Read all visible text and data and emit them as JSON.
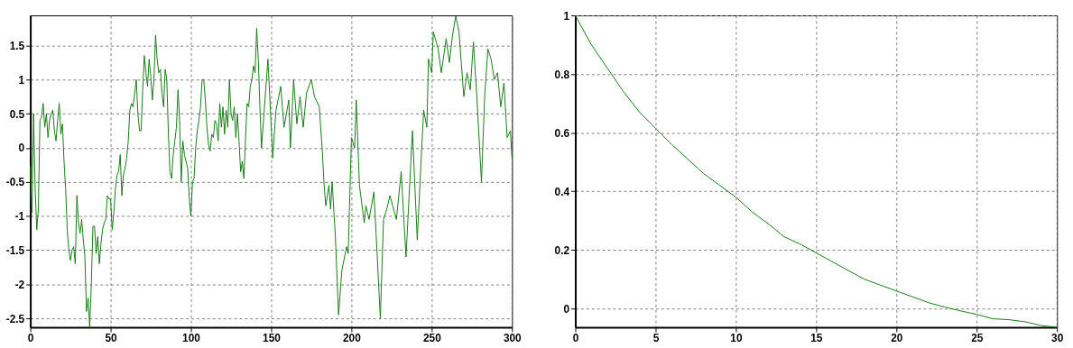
{
  "chart_data": [
    {
      "type": "line",
      "grid": true,
      "xlim": [
        0,
        300
      ],
      "ylim": [
        -2.63,
        1.94
      ],
      "xticks": [
        0,
        50,
        100,
        150,
        200,
        250,
        300
      ],
      "yticks": [
        -2.5,
        -2,
        -1.5,
        -1,
        -0.5,
        0,
        0.5,
        1,
        1.5
      ],
      "series": [
        {
          "color": "#1a7a1a",
          "x": [
            0,
            1,
            2,
            3,
            4,
            5,
            6,
            7,
            8,
            9,
            10,
            11,
            12,
            13,
            14,
            15,
            16,
            17,
            18,
            19,
            20,
            21,
            22,
            23,
            24,
            25,
            26,
            27,
            28,
            29,
            30,
            31,
            32,
            33,
            34,
            35,
            36,
            37,
            38,
            39,
            40,
            41,
            42,
            43,
            44,
            45,
            46,
            47,
            48,
            49,
            50,
            51,
            52,
            53,
            54,
            55,
            56,
            57,
            58,
            59,
            60,
            61,
            62,
            63,
            64,
            65,
            66,
            67,
            68,
            69,
            70,
            71,
            72,
            73,
            74,
            75,
            76,
            77,
            78,
            79,
            80,
            81,
            82,
            83,
            84,
            85,
            86,
            87,
            88,
            89,
            90,
            91,
            92,
            93,
            94,
            95,
            96,
            97,
            98,
            99,
            100,
            101,
            102,
            103,
            104,
            105,
            106,
            107,
            108,
            109,
            110,
            111,
            112,
            113,
            114,
            115,
            116,
            117,
            118,
            119,
            120,
            121,
            122,
            123,
            124,
            125,
            126,
            127,
            128,
            129,
            130,
            131,
            132,
            133,
            134,
            135,
            136,
            137,
            138,
            139,
            140,
            141,
            142,
            143,
            144,
            148,
            151,
            153,
            156,
            158,
            161,
            162,
            164,
            166,
            168,
            170,
            172,
            175,
            177,
            180,
            182,
            183,
            184,
            186,
            187,
            188,
            190,
            192,
            194,
            197,
            198,
            200,
            202,
            203,
            205,
            208,
            209,
            211,
            214,
            216,
            218,
            220,
            222,
            224,
            228,
            231,
            234,
            238,
            241,
            244,
            245,
            247,
            248,
            250,
            251,
            254,
            256,
            259,
            261,
            263,
            265,
            267,
            270,
            272,
            274,
            276,
            278,
            281,
            283,
            285,
            287,
            289,
            291,
            293,
            295,
            297,
            299,
            300
          ],
          "values": [
            -0.27,
            -0.95,
            0.5,
            -0.6,
            -1.2,
            -0.9,
            0.4,
            0.45,
            0.65,
            0.3,
            0.5,
            0.15,
            0.4,
            0.5,
            0.55,
            0.25,
            0.1,
            0.4,
            0.65,
            0.2,
            0.35,
            -0.2,
            -0.6,
            -1.2,
            -1.5,
            -1.65,
            -1.5,
            -1.45,
            -1.7,
            -0.7,
            -1.1,
            -1.25,
            -1.05,
            -1.35,
            -1.6,
            -2.4,
            -2.2,
            -2.63,
            -2.0,
            -1.15,
            -1.15,
            -1.55,
            -1.3,
            -1.7,
            -1.4,
            -1.2,
            -1.1,
            -1.05,
            -0.7,
            -0.75,
            -0.75,
            -1.2,
            -0.95,
            -0.6,
            -0.4,
            -0.35,
            -0.1,
            -0.7,
            -0.4,
            -0.3,
            -0.15,
            0.1,
            0.55,
            0.65,
            0.6,
            0.8,
            1.0,
            0.5,
            0.25,
            0.25,
            0.85,
            1.35,
            1.1,
            0.9,
            1.3,
            1.05,
            0.7,
            1.0,
            1.65,
            1.3,
            1.1,
            1.15,
            0.8,
            0.6,
            1.15,
            1.0,
            0.2,
            -0.35,
            -0.45,
            -0.1,
            0.1,
            0.3,
            0.85,
            0.4,
            -0.5,
            0.1,
            -0.1,
            -0.2,
            -0.3,
            -0.75,
            -1.0,
            -0.5,
            -0.45,
            0.0,
            0.25,
            0.4,
            0.6,
            1.0,
            1.0,
            0.7,
            0.3,
            0.05,
            -0.05,
            0.2,
            0.15,
            0.4,
            0.35,
            0.1,
            0.65,
            0.3,
            0.6,
            0.2,
            0.55,
            0.3,
            1.0,
            0.5,
            0.4,
            0.6,
            0.15,
            0.5,
            0.1,
            -0.35,
            -0.2,
            -0.45,
            0.1,
            0.65,
            0.6,
            0.9,
            1.0,
            1.2,
            1.1,
            1.75,
            1.3,
            0.6,
            0.0,
            1.3,
            -0.15,
            0.55,
            0.9,
            0.3,
            0.7,
            0.0,
            1.0,
            0.35,
            0.75,
            0.3,
            0.8,
            1.0,
            0.75,
            0.6,
            -0.1,
            -0.55,
            -0.85,
            -0.55,
            -0.9,
            -0.5,
            -1.3,
            -2.45,
            -1.8,
            -1.45,
            -1.55,
            0.15,
            0.0,
            0.7,
            -0.55,
            -1.1,
            -0.85,
            -1.05,
            -0.65,
            -1.55,
            -2.5,
            -1.05,
            -0.9,
            -0.7,
            -1.05,
            -0.35,
            -1.6,
            0.25,
            -1.35,
            0.1,
            0.55,
            0.3,
            1.3,
            1.1,
            1.7,
            1.45,
            1.1,
            1.6,
            1.25,
            1.65,
            1.93,
            1.7,
            0.75,
            1.1,
            0.85,
            1.55,
            0.8,
            -0.5,
            0.75,
            1.45,
            1.3,
            1.0,
            1.1,
            0.6,
            0.95,
            0.15,
            0.25,
            -0.15
          ]
        }
      ]
    },
    {
      "type": "line",
      "grid": true,
      "xlim": [
        0,
        30
      ],
      "ylim": [
        -0.064,
        1
      ],
      "xticks": [
        0,
        5,
        10,
        15,
        20,
        25,
        30
      ],
      "yticks": [
        0,
        0.2,
        0.4,
        0.6,
        0.8,
        1
      ],
      "series": [
        {
          "color": "#1a7a1a",
          "x": [
            0,
            1,
            2,
            3,
            4,
            5,
            6,
            7,
            8,
            9,
            10,
            11,
            12,
            13,
            14,
            15,
            16,
            17,
            18,
            19,
            20,
            21,
            22,
            23,
            24,
            25,
            26,
            27,
            28,
            29,
            30
          ],
          "values": [
            1.0,
            0.9,
            0.82,
            0.74,
            0.67,
            0.615,
            0.56,
            0.51,
            0.46,
            0.42,
            0.38,
            0.33,
            0.29,
            0.245,
            0.22,
            0.19,
            0.16,
            0.13,
            0.1,
            0.08,
            0.06,
            0.04,
            0.02,
            0.005,
            -0.008,
            -0.02,
            -0.035,
            -0.038,
            -0.045,
            -0.058,
            -0.064
          ]
        }
      ]
    }
  ]
}
